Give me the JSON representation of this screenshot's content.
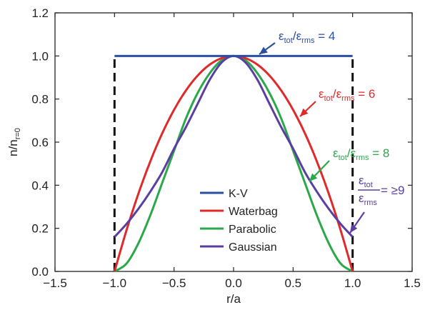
{
  "chart_data": {
    "type": "line",
    "xlabel": "r/a",
    "ylabel": "n/n",
    "ylabel_sub": "r=0",
    "xlim": [
      -1.5,
      1.5
    ],
    "ylim": [
      0.0,
      1.2
    ],
    "xticks": [
      -1.5,
      -1.0,
      -0.5,
      0.0,
      0.5,
      1.0,
      1.5
    ],
    "xtick_labels": [
      "−1.5",
      "−1.0",
      "−0.5",
      "0.0",
      "0.5",
      "1.0",
      "1.5"
    ],
    "yticks": [
      0.0,
      0.2,
      0.4,
      0.6,
      0.8,
      1.0,
      1.2
    ],
    "ytick_labels": [
      "0.0",
      "0.2",
      "0.4",
      "0.6",
      "0.8",
      "1.0",
      "1.2"
    ],
    "grid": false,
    "legend_position": "lower-center",
    "series": [
      {
        "name": "K-V",
        "color": "#2b4ea2",
        "x": [
          -1.0,
          -0.5,
          0.0,
          0.5,
          1.0
        ],
        "y": [
          1.0,
          1.0,
          1.0,
          1.0,
          1.0
        ]
      },
      {
        "name": "Waterbag",
        "color": "#e02a2a",
        "x": [
          -1.0,
          -0.9,
          -0.8,
          -0.7,
          -0.6,
          -0.5,
          -0.4,
          -0.3,
          -0.2,
          -0.1,
          0.0,
          0.1,
          0.2,
          0.3,
          0.4,
          0.5,
          0.6,
          0.7,
          0.8,
          0.9,
          1.0
        ],
        "y": [
          0.0,
          0.19,
          0.36,
          0.51,
          0.64,
          0.75,
          0.84,
          0.91,
          0.96,
          0.99,
          1.0,
          0.99,
          0.96,
          0.91,
          0.84,
          0.75,
          0.64,
          0.51,
          0.36,
          0.19,
          0.0
        ]
      },
      {
        "name": "Parabolic",
        "color": "#2aa84a",
        "x": [
          -1.0,
          -0.9,
          -0.8,
          -0.7,
          -0.6,
          -0.5,
          -0.4,
          -0.3,
          -0.2,
          -0.1,
          0.0,
          0.1,
          0.2,
          0.3,
          0.4,
          0.5,
          0.6,
          0.7,
          0.8,
          0.9,
          1.0
        ],
        "y": [
          0.0,
          0.036,
          0.13,
          0.26,
          0.41,
          0.56,
          0.71,
          0.83,
          0.92,
          0.98,
          1.0,
          0.98,
          0.92,
          0.83,
          0.71,
          0.56,
          0.41,
          0.26,
          0.13,
          0.036,
          0.0
        ]
      },
      {
        "name": "Gaussian",
        "color": "#5b3fa0",
        "x": [
          -1.0,
          -0.9,
          -0.8,
          -0.7,
          -0.6,
          -0.5,
          -0.4,
          -0.3,
          -0.2,
          -0.1,
          0.0,
          0.1,
          0.2,
          0.3,
          0.4,
          0.5,
          0.6,
          0.7,
          0.8,
          0.9,
          1.0
        ],
        "y": [
          0.16,
          0.22,
          0.29,
          0.37,
          0.46,
          0.57,
          0.67,
          0.78,
          0.89,
          0.97,
          1.0,
          0.97,
          0.89,
          0.78,
          0.67,
          0.57,
          0.46,
          0.37,
          0.29,
          0.22,
          0.16
        ]
      }
    ],
    "boundaries": {
      "x": [
        -1.0,
        1.0
      ],
      "y_range": [
        0.0,
        1.0
      ],
      "color": "#111111",
      "style": "dashed"
    },
    "annotations": [
      {
        "series": "K-V",
        "color": "#2b4ea2",
        "sym": "ε",
        "sub1": "tot",
        "slash": "/",
        "sub2": "rms",
        "eq": " = 4",
        "x": 0.22,
        "y": 1.0
      },
      {
        "series": "Waterbag",
        "color": "#e02a2a",
        "sym": "ε",
        "sub1": "tot",
        "slash": "/",
        "sub2": "rms",
        "eq": " = 6",
        "x": 0.62,
        "y": 0.71
      },
      {
        "series": "Parabolic",
        "color": "#2aa84a",
        "sym": "ε",
        "sub1": "tot",
        "slash": "/",
        "sub2": "rms",
        "eq": " = 8",
        "x": 0.64,
        "y": 0.38
      },
      {
        "series": "Gaussian",
        "color": "#5b3fa0",
        "frac_num": "ε",
        "frac_num_sub": "tot",
        "frac_den": "ε",
        "frac_den_sub": "rms",
        "eq": " = ≥9",
        "x": 1.0,
        "y": 0.17
      }
    ]
  }
}
